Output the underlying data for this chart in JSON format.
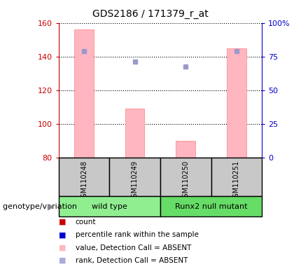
{
  "title": "GDS2186 / 171379_r_at",
  "samples": [
    "GSM110248",
    "GSM110249",
    "GSM110250",
    "GSM110251"
  ],
  "bar_values": [
    156,
    109,
    90,
    145
  ],
  "bar_bottom": 80,
  "blue_square_values": [
    143,
    137,
    134,
    143
  ],
  "ylim_left": [
    80,
    160
  ],
  "ylim_right": [
    0,
    100
  ],
  "yticks_left": [
    80,
    100,
    120,
    140,
    160
  ],
  "ytick_labels_left": [
    "80",
    "100",
    "120",
    "140",
    "160"
  ],
  "yticks_right": [
    0,
    25,
    50,
    75,
    100
  ],
  "ytick_labels_right": [
    "0",
    "25",
    "50",
    "75",
    "100%"
  ],
  "bar_color": "#FFB6C1",
  "bar_edge_color": "#FF9999",
  "blue_square_color": "#9999CC",
  "left_axis_color": "#CC0000",
  "right_axis_color": "#0000CC",
  "legend_items": [
    {
      "color": "#CC0000",
      "label": "count"
    },
    {
      "color": "#0000CC",
      "label": "percentile rank within the sample"
    },
    {
      "color": "#FFB6C1",
      "label": "value, Detection Call = ABSENT"
    },
    {
      "color": "#AAAADD",
      "label": "rank, Detection Call = ABSENT"
    }
  ],
  "group_label": "genotype/variation",
  "sample_box_color": "#C8C8C8",
  "group_spans": [
    {
      "label": "wild type",
      "start": 0,
      "end": 2,
      "color": "#90EE90"
    },
    {
      "label": "Runx2 null mutant",
      "start": 2,
      "end": 4,
      "color": "#66DD66"
    }
  ]
}
